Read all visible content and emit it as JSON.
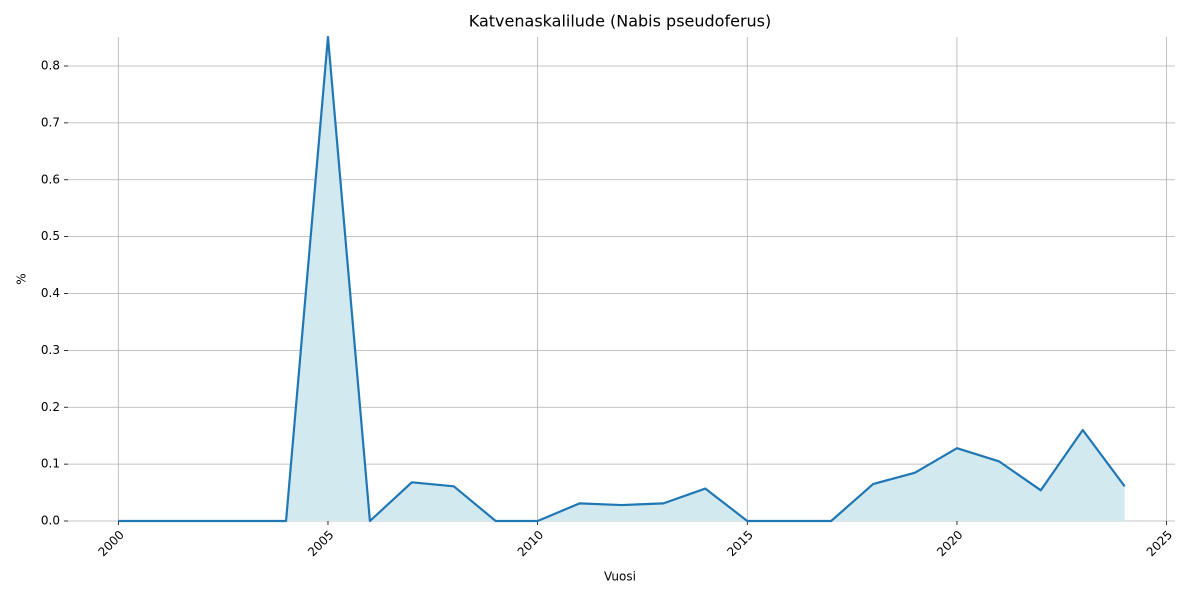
{
  "chart_data": {
    "type": "line",
    "title": "Katvenaskalilude (Nabis pseudoferus)",
    "x_label": "Vuosi",
    "y_label": "%",
    "x": [
      2000,
      2001,
      2002,
      2003,
      2004,
      2005,
      2006,
      2007,
      2008,
      2009,
      2010,
      2011,
      2012,
      2013,
      2014,
      2015,
      2016,
      2017,
      2018,
      2019,
      2020,
      2021,
      2022,
      2023,
      2024
    ],
    "series": [
      {
        "name": "Katvenaskalilude",
        "color": "#1f77b4",
        "fill_color": "#d3e9f0",
        "values": [
          0,
          0,
          0,
          0,
          0,
          0.851,
          0,
          0.068,
          0.061,
          0,
          0,
          0.031,
          0.028,
          0.031,
          0.057,
          0,
          0,
          0,
          0.065,
          0.085,
          0.128,
          0.105,
          0.054,
          0.16,
          0.061
        ]
      }
    ],
    "xlim": [
      1998.8,
      2025.2
    ],
    "xticks": [
      2000,
      2005,
      2010,
      2015,
      2020,
      2025
    ],
    "ylim": [
      0,
      0.851
    ],
    "yticks": [
      0.0,
      0.1,
      0.2,
      0.3,
      0.4,
      0.5,
      0.6,
      0.7,
      0.8
    ],
    "grid": true
  }
}
